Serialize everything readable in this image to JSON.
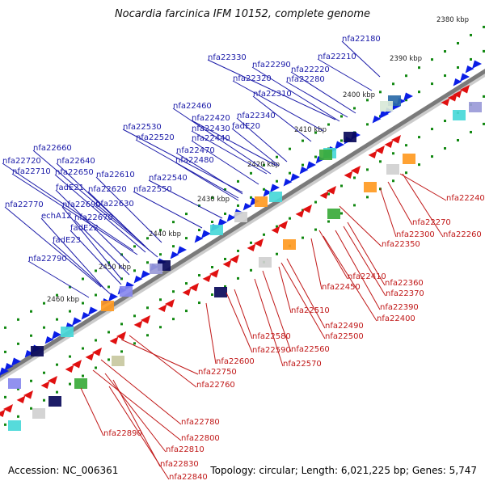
{
  "title": "Nocardia farcinica IFM 10152, complete genome",
  "footer": {
    "accession": "Accession: NC_006361",
    "topology": "Topology: circular; Length: 6,021,225 bp; Genes: 5,747"
  },
  "colors": {
    "backbone": "#7a7a7a",
    "forward_arrow": "#0a1ee6",
    "reverse_arrow": "#e01010",
    "forward_label": "#1a1aa8",
    "reverse_label": "#c01818",
    "tick": "#118811"
  },
  "kbp_labels": [
    "2380 kbp",
    "2390 kbp",
    "2400 kbp",
    "2410 kbp",
    "2420 kbp",
    "2430 kbp",
    "2440 kbp",
    "2450 kbp",
    "2460 kbp"
  ],
  "forward_genes": [
    "nfa22180",
    "nfa22210",
    "nfa22330",
    "nfa22290",
    "nfa22220",
    "nfa22320",
    "nfa22280",
    "nfa22310",
    "nfa22460",
    "nfa22420",
    "nfa22340",
    "nfa22530",
    "nfa22430",
    "fadE20",
    "nfa22520",
    "nfa22440",
    "nfa22470",
    "nfa22480",
    "nfa22660",
    "nfa22720",
    "nfa22640",
    "nfa22710",
    "nfa22650",
    "nfa22610",
    "nfa22540",
    "fadE21",
    "nfa22620",
    "nfa22550",
    "nfa22770",
    "nfa22690",
    "nfa22630",
    "echA12",
    "nfa22670",
    "fadE22",
    "fadE23",
    "nfa22790"
  ],
  "reverse_genes": [
    "nfa22240",
    "nfa22270",
    "nfa22300",
    "nfa22260",
    "nfa22350",
    "nfa22410",
    "nfa22360",
    "nfa22450",
    "nfa22370",
    "nfa22390",
    "nfa22400",
    "nfa22490",
    "nfa22510",
    "nfa22500",
    "nfa22580",
    "nfa22560",
    "nfa22590",
    "nfa22600",
    "nfa22570",
    "nfa22750",
    "nfa22760",
    "nfa22780",
    "nfa22890",
    "nfa22800",
    "nfa22810",
    "nfa22830",
    "nfa22840"
  ]
}
